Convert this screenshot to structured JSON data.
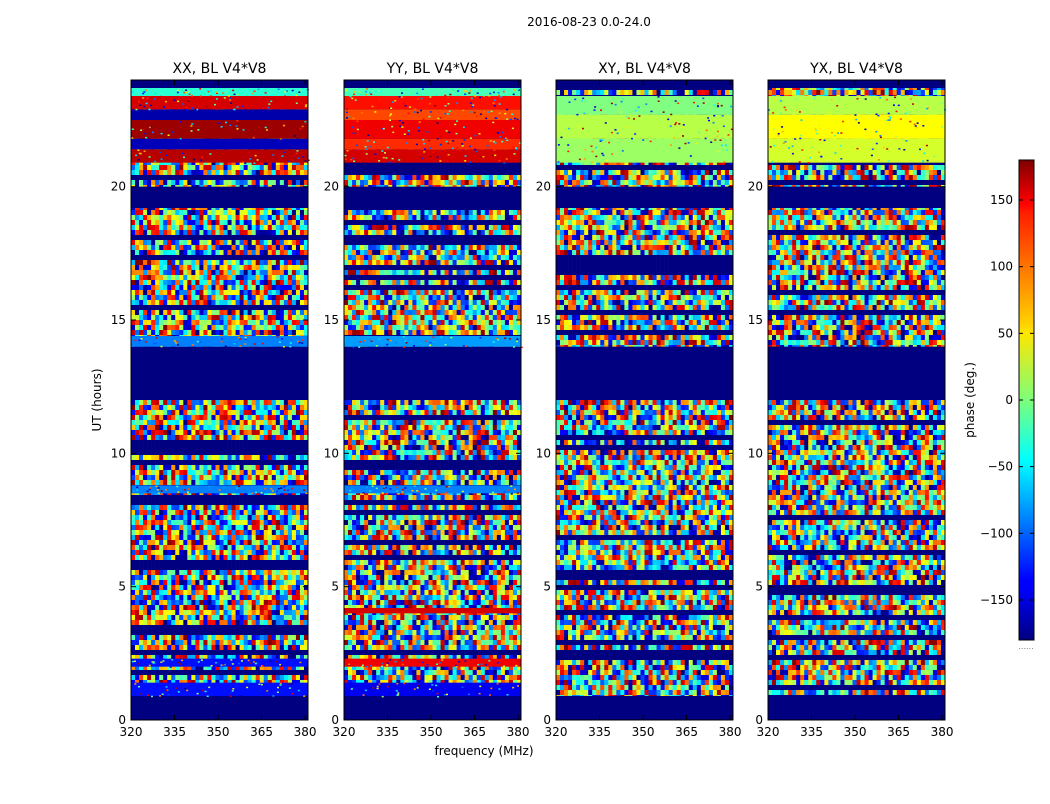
{
  "figure": {
    "suptitle": "2016-08-23 0.0-24.0",
    "xlabel": "frequency (MHz)",
    "ylabel": "UT (hours)"
  },
  "colorbar": {
    "label": "phase (deg.)",
    "range": [
      -180,
      180
    ],
    "ticks": [
      {
        "value": 150,
        "label": "150"
      },
      {
        "value": 100,
        "label": "100"
      },
      {
        "value": 50,
        "label": "50"
      },
      {
        "value": 0,
        "label": "0"
      },
      {
        "value": -50,
        "label": "−50"
      },
      {
        "value": -100,
        "label": "−100"
      },
      {
        "value": -150,
        "label": "−150"
      }
    ],
    "bottom_note": "......",
    "colormap": "jet"
  },
  "chart_data": {
    "type": "heatmap",
    "xlim": [
      320,
      381
    ],
    "ylim": [
      0,
      24
    ],
    "x_ticks": [
      {
        "value": 320,
        "label": "320"
      },
      {
        "value": 335,
        "label": "335"
      },
      {
        "value": 350,
        "label": "350"
      },
      {
        "value": 365,
        "label": "365"
      },
      {
        "value": 380,
        "label": "380"
      }
    ],
    "y_ticks": [
      {
        "value": 0,
        "label": "0"
      },
      {
        "value": 5,
        "label": "5"
      },
      {
        "value": 10,
        "label": "10"
      },
      {
        "value": 15,
        "label": "15"
      },
      {
        "value": 20,
        "label": "20"
      }
    ],
    "panels": [
      {
        "title": "XX, BL V4*V8",
        "rows": [
          {
            "t0": 0.0,
            "t1": 0.9,
            "val": -180
          },
          {
            "t0": 0.9,
            "t1": 1.4,
            "val": -130
          },
          {
            "t0": 2.0,
            "t1": 2.3,
            "val": -130
          },
          {
            "t0": 8.5,
            "t1": 8.8,
            "val": -90
          },
          {
            "t0": 12.0,
            "t1": 14.0,
            "val": -180
          },
          {
            "t0": 14.0,
            "t1": 14.4,
            "val": -90
          },
          {
            "t0": 19.2,
            "t1": 20.0,
            "val": -180
          },
          {
            "t0": 20.9,
            "t1": 21.4,
            "val": 160
          },
          {
            "t0": 21.4,
            "t1": 21.8,
            "val": -160
          },
          {
            "t0": 21.8,
            "t1": 22.5,
            "val": 170
          },
          {
            "t0": 22.5,
            "t1": 22.9,
            "val": -165
          },
          {
            "t0": 22.9,
            "t1": 23.4,
            "val": 150
          },
          {
            "t0": 23.4,
            "t1": 23.7,
            "val": -30
          },
          {
            "t0": 23.7,
            "t1": 24.0,
            "val": -180
          }
        ]
      },
      {
        "title": "YY, BL V4*V8",
        "rows": [
          {
            "t0": 0.0,
            "t1": 0.9,
            "val": -180
          },
          {
            "t0": 0.9,
            "t1": 1.4,
            "val": -140
          },
          {
            "t0": 2.0,
            "t1": 2.3,
            "val": 140
          },
          {
            "t0": 4.0,
            "t1": 4.2,
            "val": 150
          },
          {
            "t0": 8.5,
            "t1": 8.8,
            "val": -90
          },
          {
            "t0": 12.0,
            "t1": 14.0,
            "val": -180
          },
          {
            "t0": 14.0,
            "t1": 14.4,
            "val": -80
          },
          {
            "t0": 19.2,
            "t1": 20.0,
            "val": -180
          },
          {
            "t0": 20.9,
            "t1": 21.4,
            "val": 150
          },
          {
            "t0": 21.4,
            "t1": 21.8,
            "val": 120
          },
          {
            "t0": 21.8,
            "t1": 22.5,
            "val": 140
          },
          {
            "t0": 22.5,
            "t1": 22.9,
            "val": 110
          },
          {
            "t0": 22.9,
            "t1": 23.4,
            "val": 130
          },
          {
            "t0": 23.4,
            "t1": 23.7,
            "val": -20
          },
          {
            "t0": 23.7,
            "t1": 24.0,
            "val": -180
          }
        ]
      },
      {
        "title": "XY, BL V4*V8",
        "rows": [
          {
            "t0": 0.0,
            "t1": 0.9,
            "val": -180
          },
          {
            "t0": 12.0,
            "t1": 14.0,
            "val": -180
          },
          {
            "t0": 19.2,
            "t1": 20.0,
            "val": -180
          },
          {
            "t0": 20.9,
            "t1": 21.8,
            "val": 10
          },
          {
            "t0": 21.8,
            "t1": 22.7,
            "val": 20
          },
          {
            "t0": 22.7,
            "t1": 23.4,
            "val": 0
          },
          {
            "t0": 23.7,
            "t1": 24.0,
            "val": -180
          }
        ]
      },
      {
        "title": "YX, BL V4*V8",
        "rows": [
          {
            "t0": 0.0,
            "t1": 0.9,
            "val": -180
          },
          {
            "t0": 12.0,
            "t1": 14.0,
            "val": -180
          },
          {
            "t0": 19.2,
            "t1": 20.0,
            "val": -180
          },
          {
            "t0": 20.9,
            "t1": 21.8,
            "val": 30
          },
          {
            "t0": 21.8,
            "t1": 22.7,
            "val": 45
          },
          {
            "t0": 22.7,
            "t1": 23.4,
            "val": 20
          },
          {
            "t0": 23.7,
            "t1": 24.0,
            "val": -180
          }
        ]
      }
    ]
  }
}
